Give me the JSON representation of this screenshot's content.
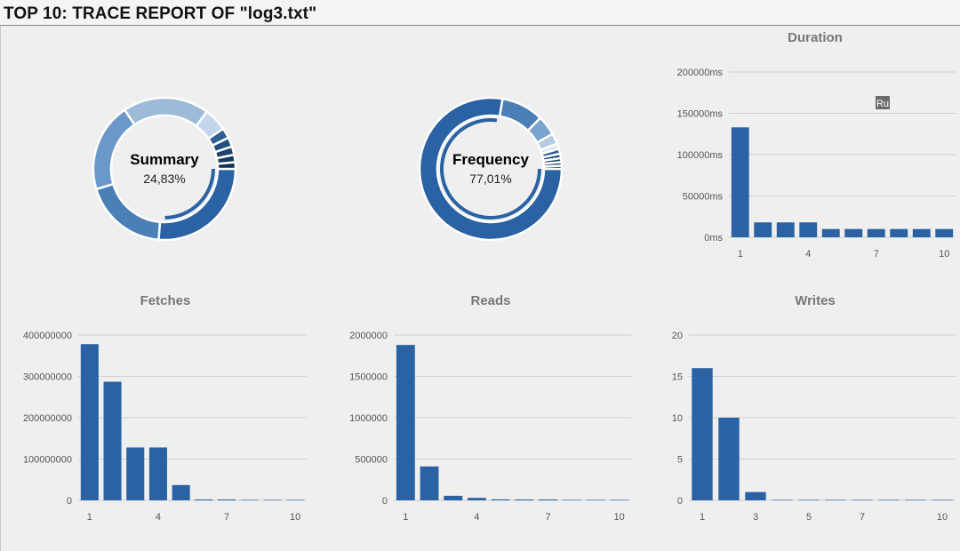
{
  "header": {
    "title": "TOP 10: TRACE REPORT OF \"log3.txt\""
  },
  "donuts": [
    {
      "id": "summary",
      "label": "Summary",
      "value_text": "24,83%",
      "outer_segments": [
        {
          "value": 24.83,
          "color": "#2a62a3"
        },
        {
          "value": 18.0,
          "color": "#4a7fb8"
        },
        {
          "value": 19.0,
          "color": "#6a98c8"
        },
        {
          "value": 18.5,
          "color": "#9dbbd9"
        },
        {
          "value": 5.0,
          "color": "#c3d6ea"
        },
        {
          "value": 2.2,
          "color": "#2f5f93"
        },
        {
          "value": 2.0,
          "color": "#24507f"
        },
        {
          "value": 1.8,
          "color": "#1d4470"
        },
        {
          "value": 1.6,
          "color": "#163961"
        },
        {
          "value": 1.4,
          "color": "#0f2e52"
        }
      ],
      "inner_highlight": {
        "value": 24.83,
        "color": "#2a62a3"
      }
    },
    {
      "id": "frequency",
      "label": "Frequency",
      "value_text": "77,01%",
      "outer_segments": [
        {
          "value": 77.01,
          "color": "#2a62a3"
        },
        {
          "value": 9.5,
          "color": "#4a7fb8"
        },
        {
          "value": 4.5,
          "color": "#7aa3cf"
        },
        {
          "value": 2.4,
          "color": "#b3cbe4"
        },
        {
          "value": 1.2,
          "color": "#dbe7f3"
        },
        {
          "value": 1.1,
          "color": "#2f5f93"
        },
        {
          "value": 1.0,
          "color": "#24507f"
        },
        {
          "value": 0.9,
          "color": "#1d4470"
        },
        {
          "value": 0.8,
          "color": "#163961"
        },
        {
          "value": 0.7,
          "color": "#0f2e52"
        }
      ],
      "inner_highlight": {
        "value": 77.01,
        "color": "#2a62a3"
      }
    }
  ],
  "chart_data": [
    {
      "id": "duration",
      "type": "bar",
      "title": "Duration",
      "categories": [
        "1",
        "2",
        "3",
        "4",
        "5",
        "6",
        "7",
        "8",
        "9",
        "10"
      ],
      "x_tick_labels": [
        "1",
        "4",
        "7",
        "10"
      ],
      "values": [
        133000,
        18000,
        18000,
        18000,
        10000,
        10000,
        10000,
        10000,
        10000,
        10000
      ],
      "ylim": [
        0,
        200000
      ],
      "y_ticks": [
        0,
        50000,
        100000,
        150000,
        200000
      ],
      "y_tick_labels": [
        "0ms",
        "50000ms",
        "100000ms",
        "150000ms",
        "200000ms"
      ],
      "grid": true,
      "color": "#2a62a3",
      "annotation": "Ru"
    },
    {
      "id": "fetches",
      "type": "bar",
      "title": "Fetches",
      "categories": [
        "1",
        "2",
        "3",
        "4",
        "5",
        "6",
        "7",
        "8",
        "9",
        "10"
      ],
      "x_tick_labels": [
        "1",
        "4",
        "7",
        "10"
      ],
      "values": [
        378000000,
        287000000,
        128000000,
        128000000,
        37000000,
        1000000,
        1000000,
        0,
        0,
        0
      ],
      "ylim": [
        0,
        400000000
      ],
      "y_ticks": [
        0,
        100000000,
        200000000,
        300000000,
        400000000
      ],
      "y_tick_labels": [
        "0",
        "100000000",
        "200000000",
        "300000000",
        "400000000"
      ],
      "grid": true,
      "color": "#2a62a3"
    },
    {
      "id": "reads",
      "type": "bar",
      "title": "Reads",
      "categories": [
        "1",
        "2",
        "3",
        "4",
        "5",
        "6",
        "7",
        "8",
        "9",
        "10"
      ],
      "x_tick_labels": [
        "1",
        "4",
        "7",
        "10"
      ],
      "values": [
        1880000,
        410000,
        55000,
        30000,
        12000,
        8000,
        6000,
        0,
        0,
        0
      ],
      "ylim": [
        0,
        2000000
      ],
      "y_ticks": [
        0,
        500000,
        1000000,
        1500000,
        2000000
      ],
      "y_tick_labels": [
        "0",
        "500000",
        "1000000",
        "1500000",
        "2000000"
      ],
      "grid": true,
      "color": "#2a62a3"
    },
    {
      "id": "writes",
      "type": "bar",
      "title": "Writes",
      "categories": [
        "1",
        "2",
        "3",
        "4",
        "5",
        "6",
        "7",
        "8",
        "9",
        "10"
      ],
      "x_tick_labels": [
        "1",
        "3",
        "5",
        "7",
        "10"
      ],
      "values": [
        16,
        10,
        1,
        0,
        0,
        0,
        0,
        0,
        0,
        0
      ],
      "ylim": [
        0,
        20
      ],
      "y_ticks": [
        0,
        5,
        10,
        15,
        20
      ],
      "y_tick_labels": [
        "0",
        "5",
        "10",
        "15",
        "20"
      ],
      "grid": true,
      "color": "#2a62a3"
    }
  ]
}
